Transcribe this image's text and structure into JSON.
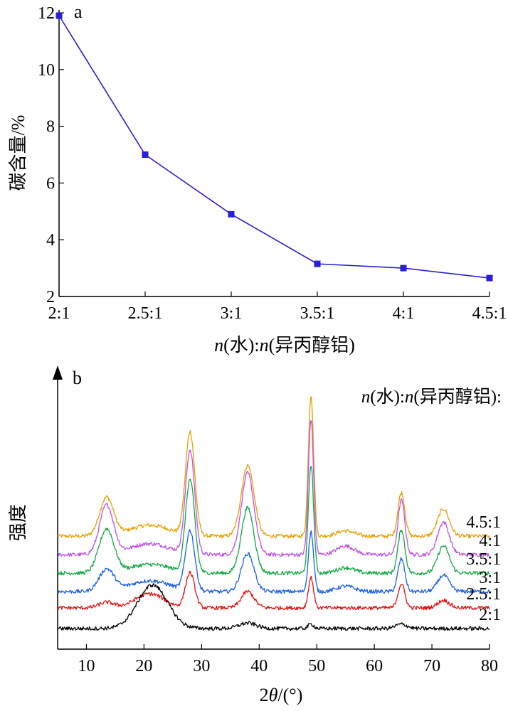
{
  "chart_data": [
    {
      "panel": "a",
      "type": "line",
      "categories": [
        "2:1",
        "2.5:1",
        "3:1",
        "3.5:1",
        "4:1",
        "4.5:1"
      ],
      "values": [
        11.9,
        7.0,
        4.9,
        3.15,
        3.0,
        2.65
      ],
      "ylabel": "碳含量/%",
      "xlabel_parts": {
        "n1": "n",
        "mid": "(水):",
        "n2": "n",
        "tail": "(异丙醇铝)"
      },
      "ylim": [
        2,
        12
      ],
      "yticks": [
        2,
        4,
        6,
        8,
        10,
        12
      ],
      "color": "#2a1fd6",
      "marker": "square",
      "grid": false
    },
    {
      "panel": "b",
      "type": "line",
      "title": "",
      "xlabel_parts": {
        "pre": "2",
        "theta": "θ",
        "post": "/(°)"
      },
      "ylabel": "强度",
      "xlim": [
        5,
        80
      ],
      "xticks": [
        10,
        20,
        30,
        40,
        50,
        60,
        70,
        80
      ],
      "grid": false,
      "legend_title_parts": {
        "n1": "n",
        "mid": "(水):",
        "n2": "n",
        "tail": "(异丙醇铝):"
      },
      "series": [
        {
          "name": "4.5:1",
          "color": "#e8a000",
          "baseline": 0.85,
          "peaks": [
            [
              13.5,
              0.35,
              1.2
            ],
            [
              21,
              0.1,
              3.5
            ],
            [
              28,
              0.95,
              0.8
            ],
            [
              38,
              0.65,
              1.1
            ],
            [
              49,
              1.3,
              0.45
            ],
            [
              55,
              0.05,
              1.5
            ],
            [
              64.7,
              0.4,
              0.6
            ],
            [
              72,
              0.25,
              1.0
            ]
          ]
        },
        {
          "name": "4:1",
          "color": "#c050e8",
          "baseline": 0.68,
          "peaks": [
            [
              13.5,
              0.45,
              1.2
            ],
            [
              21,
              0.1,
              3.5
            ],
            [
              28,
              0.95,
              0.8
            ],
            [
              38,
              0.75,
              1.1
            ],
            [
              49,
              1.25,
              0.45
            ],
            [
              55,
              0.08,
              1.5
            ],
            [
              64.7,
              0.5,
              0.6
            ],
            [
              72,
              0.3,
              1.0
            ]
          ]
        },
        {
          "name": "3.5:1",
          "color": "#10a840",
          "baseline": 0.51,
          "peaks": [
            [
              13.5,
              0.4,
              1.3
            ],
            [
              21,
              0.08,
              3.5
            ],
            [
              28,
              0.85,
              0.8
            ],
            [
              38,
              0.6,
              1.1
            ],
            [
              49,
              1.0,
              0.45
            ],
            [
              55,
              0.05,
              1.5
            ],
            [
              64.7,
              0.4,
              0.6
            ],
            [
              72,
              0.25,
              1.0
            ]
          ]
        },
        {
          "name": "3:1",
          "color": "#1a5ff0",
          "baseline": 0.34,
          "peaks": [
            [
              13.5,
              0.2,
              1.3
            ],
            [
              21,
              0.1,
              3.5
            ],
            [
              28,
              0.55,
              0.8
            ],
            [
              38,
              0.35,
              1.1
            ],
            [
              49,
              0.55,
              0.45
            ],
            [
              55,
              0.05,
              1.5
            ],
            [
              64.7,
              0.3,
              0.6
            ],
            [
              72,
              0.15,
              1.0
            ]
          ]
        },
        {
          "name": "2.5:1",
          "color": "#e81010",
          "baseline": 0.19,
          "peaks": [
            [
              13.5,
              0.05,
              1.3
            ],
            [
              21,
              0.13,
              2.5
            ],
            [
              28,
              0.32,
              0.8
            ],
            [
              38,
              0.15,
              1.1
            ],
            [
              49,
              0.28,
              0.45
            ],
            [
              64.7,
              0.22,
              0.6
            ],
            [
              72,
              0.07,
              1.0
            ]
          ]
        },
        {
          "name": "2:1",
          "color": "#000000",
          "baseline": 0.0,
          "peaks": [
            [
              21.5,
              0.4,
              2.6
            ],
            [
              38,
              0.05,
              1.5
            ],
            [
              49,
              0.04,
              0.5
            ],
            [
              64.7,
              0.04,
              1.0
            ]
          ]
        }
      ]
    }
  ]
}
